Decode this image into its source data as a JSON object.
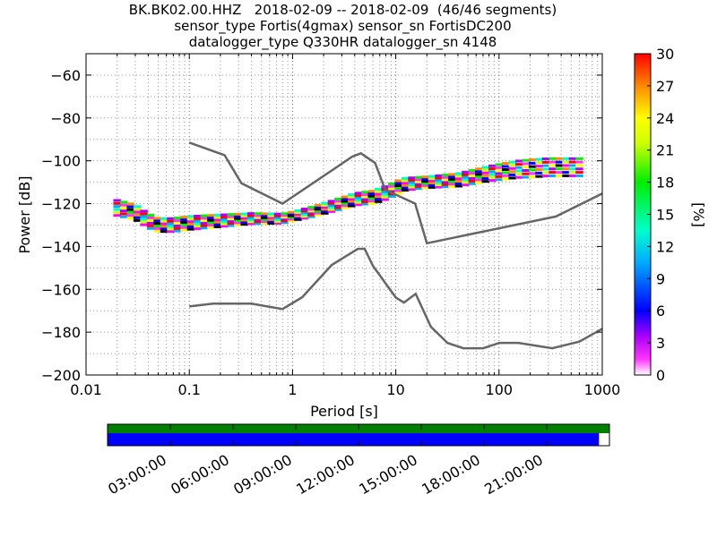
{
  "title_lines": [
    "BK.BK02.00.HHZ   2018-02-09 -- 2018-02-09  (46/46 segments)",
    "sensor_type Fortis(4gmax) sensor_sn FortisDC200",
    "datalogger_type Q330HR datalogger_sn 4148"
  ],
  "chart_data": {
    "type": "heatmap",
    "xlabel": "Period [s]",
    "ylabel": "Power [dB]",
    "xscale": "log",
    "xlim": [
      0.01,
      1000
    ],
    "ylim": [
      -200,
      -50
    ],
    "x_ticks": [
      0.01,
      0.1,
      1,
      10,
      100,
      1000
    ],
    "x_tick_labels": [
      "0.01",
      "0.1",
      "1",
      "10",
      "100",
      "1000"
    ],
    "y_ticks": [
      -200,
      -180,
      -160,
      -140,
      -120,
      -100,
      -80,
      -60
    ],
    "y_tick_labels": [
      "−200",
      "−180",
      "−160",
      "−140",
      "−120",
      "−100",
      "−80",
      "−60"
    ],
    "grid": true,
    "colorbar": {
      "label": "[%]",
      "range": [
        0,
        30
      ],
      "ticks": [
        0,
        3,
        6,
        9,
        12,
        15,
        18,
        21,
        24,
        27,
        30
      ],
      "tick_labels": [
        "0",
        "3",
        "6",
        "9",
        "12",
        "15",
        "18",
        "21",
        "24",
        "27",
        "30"
      ]
    },
    "noise_models": [
      {
        "points": [
          [
            0.1,
            -91.5
          ],
          [
            0.22,
            -97.4
          ],
          [
            0.32,
            -110.5
          ],
          [
            0.8,
            -120
          ],
          [
            3.8,
            -98
          ],
          [
            4.6,
            -96.5
          ],
          [
            6.3,
            -101
          ],
          [
            7.9,
            -113.5
          ],
          [
            15.4,
            -120
          ],
          [
            20,
            -138.5
          ],
          [
            354.8,
            -126
          ],
          [
            10000,
            -91.5
          ]
        ]
      },
      {
        "points": [
          [
            0.1,
            -168
          ],
          [
            0.17,
            -166.7
          ],
          [
            0.4,
            -166.7
          ],
          [
            0.8,
            -169.2
          ],
          [
            1.24,
            -163.7
          ],
          [
            2.4,
            -148.6
          ],
          [
            4.3,
            -141.1
          ],
          [
            5,
            -141.1
          ],
          [
            6,
            -149
          ],
          [
            10,
            -163.8
          ],
          [
            12,
            -166.2
          ],
          [
            15.6,
            -162.1
          ],
          [
            21.9,
            -177.5
          ],
          [
            31.6,
            -185
          ],
          [
            45,
            -187.5
          ],
          [
            70,
            -187.5
          ],
          [
            101,
            -185
          ],
          [
            154,
            -185
          ],
          [
            328,
            -187.5
          ],
          [
            600,
            -184.4
          ],
          [
            10000,
            -151.5
          ]
        ]
      }
    ],
    "psd_median": {
      "points": [
        [
          0.02,
          -122
        ],
        [
          0.03,
          -124
        ],
        [
          0.04,
          -128
        ],
        [
          0.05,
          -130
        ],
        [
          0.07,
          -130
        ],
        [
          0.1,
          -129
        ],
        [
          0.2,
          -128
        ],
        [
          0.4,
          -127
        ],
        [
          0.8,
          -127
        ],
        [
          1.5,
          -124
        ],
        [
          2.5,
          -121
        ],
        [
          4,
          -118
        ],
        [
          6,
          -117
        ],
        [
          8,
          -115
        ],
        [
          12,
          -111
        ],
        [
          20,
          -110
        ],
        [
          40,
          -109
        ],
        [
          80,
          -106
        ],
        [
          150,
          -104
        ],
        [
          300,
          -103
        ],
        [
          600,
          -103
        ]
      ]
    },
    "psd_spread": {
      "points": [
        [
          0.02,
          3.5
        ],
        [
          0.05,
          3
        ],
        [
          0.1,
          3
        ],
        [
          0.3,
          2.5
        ],
        [
          1,
          2
        ],
        [
          3,
          2.5
        ],
        [
          8,
          3
        ],
        [
          20,
          2.5
        ],
        [
          50,
          3
        ],
        [
          100,
          3.5
        ],
        [
          200,
          4
        ],
        [
          600,
          4
        ]
      ]
    },
    "time_axis": {
      "tick_labels": [
        "03:00:00",
        "06:00:00",
        "09:00:00",
        "12:00:00",
        "15:00:00",
        "18:00:00",
        "21:00:00"
      ],
      "ticks_hours": [
        3,
        6,
        9,
        12,
        15,
        18,
        21
      ],
      "range_hours": [
        0,
        24
      ],
      "coverage_hours": [
        0,
        23.5
      ]
    },
    "colors": {
      "noise_model": "#666666",
      "grid": "#555555",
      "data_availability": "#008000",
      "psd_coverage": "#0000ff"
    }
  }
}
